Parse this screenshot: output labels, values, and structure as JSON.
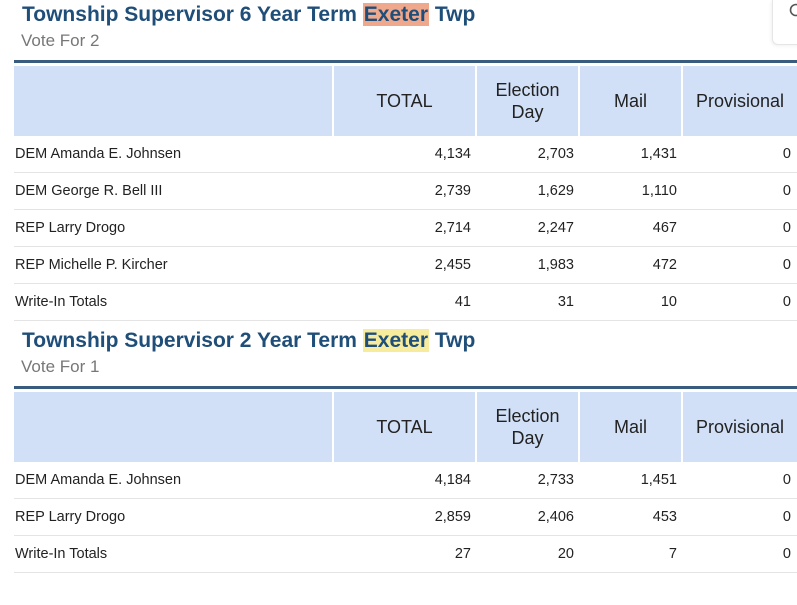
{
  "contests": [
    {
      "title_prefix": "Township Supervisor 6 Year Term ",
      "title_highlight": "Exeter",
      "title_suffix": " Twp",
      "vote_for": "Vote For 2",
      "headers": [
        "",
        "TOTAL",
        "Election Day",
        "Mail",
        "Provisional"
      ],
      "rows": [
        {
          "name": "DEM Amanda E. Johnsen",
          "total": "4,134",
          "election_day": "2,703",
          "mail": "1,431",
          "provisional": "0"
        },
        {
          "name": "DEM George R. Bell III",
          "total": "2,739",
          "election_day": "1,629",
          "mail": "1,110",
          "provisional": "0"
        },
        {
          "name": "REP Larry Drogo",
          "total": "2,714",
          "election_day": "2,247",
          "mail": "467",
          "provisional": "0"
        },
        {
          "name": "REP Michelle P. Kircher",
          "total": "2,455",
          "election_day": "1,983",
          "mail": "472",
          "provisional": "0"
        },
        {
          "name": "Write-In Totals",
          "total": "41",
          "election_day": "31",
          "mail": "10",
          "provisional": "0"
        }
      ]
    },
    {
      "title_prefix": "Township Supervisor 2 Year Term ",
      "title_highlight": "Exeter",
      "title_suffix": " Twp",
      "vote_for": "Vote For 1",
      "headers": [
        "",
        "TOTAL",
        "Election Day",
        "Mail",
        "Provisional"
      ],
      "rows": [
        {
          "name": "DEM Amanda E. Johnsen",
          "total": "4,184",
          "election_day": "2,733",
          "mail": "1,451",
          "provisional": "0"
        },
        {
          "name": "REP Larry Drogo",
          "total": "2,859",
          "election_day": "2,406",
          "mail": "453",
          "provisional": "0"
        },
        {
          "name": "Write-In Totals",
          "total": "27",
          "election_day": "20",
          "mail": "7",
          "provisional": "0"
        }
      ]
    }
  ],
  "icons": {
    "search": "search-icon"
  },
  "colors": {
    "title": "#1f4e79",
    "header_bg": "#d1e0f7",
    "highlight_current": "#f0a88c",
    "highlight_other": "#f7ec9e",
    "rule": "#385b7e"
  }
}
